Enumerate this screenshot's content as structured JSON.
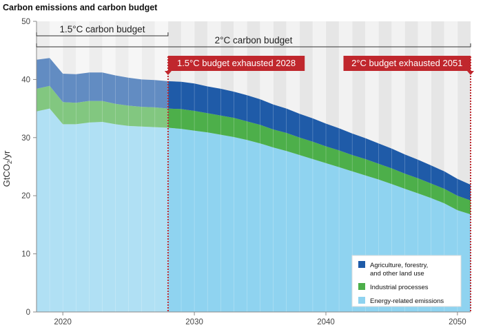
{
  "chart_data": {
    "type": "area",
    "title": "Carbon emissions and carbon budget",
    "ylabel": "GtCO₂/yr",
    "ylabel_main": "GtCO",
    "ylabel_sub": "2",
    "ylabel_tail": "/yr",
    "xlim": [
      2018,
      2051
    ],
    "ylim": [
      0,
      50
    ],
    "x_ticks": [
      2020,
      2030,
      2040,
      2050
    ],
    "y_ticks": [
      0,
      10,
      20,
      30,
      40,
      50
    ],
    "x": [
      2018,
      2019,
      2020,
      2021,
      2022,
      2023,
      2024,
      2025,
      2026,
      2027,
      2028,
      2029,
      2030,
      2031,
      2032,
      2033,
      2034,
      2035,
      2036,
      2037,
      2038,
      2039,
      2040,
      2041,
      2042,
      2043,
      2044,
      2045,
      2046,
      2047,
      2048,
      2049,
      2050,
      2051
    ],
    "series": [
      {
        "name": "Energy-related emissions",
        "color": "#8fd3f0",
        "values": [
          34.5,
          35.0,
          32.3,
          32.3,
          32.6,
          32.7,
          32.3,
          32.0,
          31.9,
          31.8,
          31.7,
          31.5,
          31.2,
          30.9,
          30.5,
          30.1,
          29.6,
          29.0,
          28.3,
          27.7,
          27.0,
          26.3,
          25.6,
          24.9,
          24.2,
          23.5,
          22.8,
          22.0,
          21.2,
          20.4,
          19.6,
          18.7,
          17.5,
          16.8
        ]
      },
      {
        "name": "Industrial processes",
        "color": "#4daf4a",
        "values": [
          3.9,
          3.9,
          3.8,
          3.7,
          3.7,
          3.6,
          3.5,
          3.5,
          3.4,
          3.4,
          3.3,
          3.4,
          3.4,
          3.3,
          3.3,
          3.3,
          3.2,
          3.2,
          3.1,
          3.1,
          3.0,
          3.0,
          2.9,
          2.9,
          2.8,
          2.8,
          2.7,
          2.7,
          2.6,
          2.6,
          2.5,
          2.5,
          2.5,
          2.4
        ]
      },
      {
        "name": "Agriculture, forestry, and other land use",
        "color": "#1f5ba8",
        "values": [
          5.0,
          4.8,
          4.9,
          4.9,
          4.9,
          4.9,
          4.9,
          4.8,
          4.7,
          4.7,
          4.7,
          4.7,
          4.7,
          4.6,
          4.6,
          4.5,
          4.5,
          4.4,
          4.3,
          4.2,
          4.1,
          4.0,
          3.9,
          3.8,
          3.7,
          3.6,
          3.5,
          3.4,
          3.3,
          3.2,
          3.1,
          3.0,
          2.9,
          2.7
        ]
      }
    ],
    "legend": {
      "placement": "bottom-right",
      "entries": [
        {
          "lines": [
            "Agriculture, forestry,",
            "and other land use"
          ],
          "color": "#1f5ba8"
        },
        {
          "lines": [
            "Industrial processes"
          ],
          "color": "#4daf4a"
        },
        {
          "lines": [
            "Energy-related emissions"
          ],
          "color": "#8fd3f0"
        }
      ]
    },
    "budgets": [
      {
        "label": "1.5°C carbon budget",
        "start": 2018,
        "end": 2028
      },
      {
        "label": "2°C carbon budget",
        "start": 2018,
        "end": 2051
      }
    ],
    "markers": [
      {
        "label": "1.5°C budget exhausted 2028",
        "year": 2028
      },
      {
        "label": "2°C budget exhausted 2051",
        "year": 2051
      }
    ],
    "marker_color": "#c0272d",
    "grid": "vertical stripes"
  }
}
